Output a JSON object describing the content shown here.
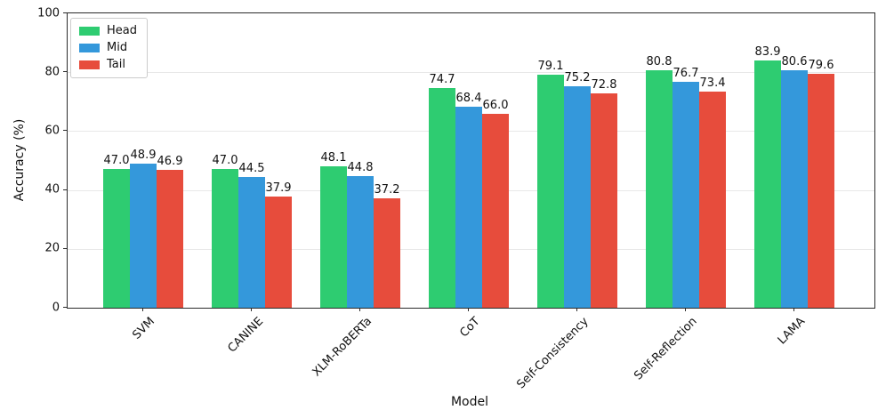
{
  "chart_data": {
    "type": "bar",
    "title": "",
    "xlabel": "Model",
    "ylabel": "Accuracy (%)",
    "ylim": [
      0,
      100
    ],
    "yticks": [
      0,
      20,
      40,
      60,
      80,
      100
    ],
    "grid": "horizontal",
    "legend_position": "upper-left",
    "categories": [
      "SVM",
      "CANINE",
      "XLM-RoBERTa",
      "CoT",
      "Self-Consistency",
      "Self-Reflection",
      "LAMA"
    ],
    "series": [
      {
        "name": "Head",
        "color": "#2ecc71",
        "values": [
          47.0,
          47.0,
          48.1,
          74.7,
          79.1,
          80.8,
          83.9
        ]
      },
      {
        "name": "Mid",
        "color": "#3498db",
        "values": [
          48.9,
          44.5,
          44.8,
          68.4,
          75.2,
          76.7,
          80.6
        ]
      },
      {
        "name": "Tail",
        "color": "#e74c3c",
        "values": [
          46.9,
          37.9,
          37.2,
          66.0,
          72.8,
          73.4,
          79.6
        ]
      }
    ]
  }
}
